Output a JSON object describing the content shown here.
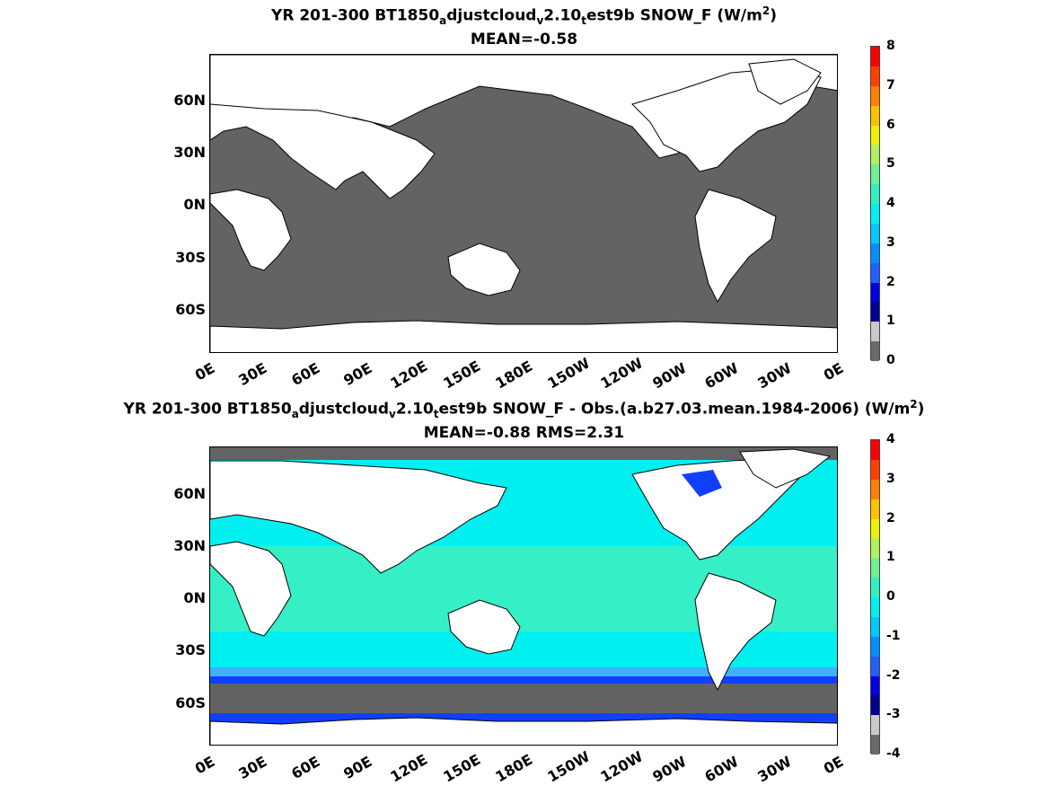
{
  "panels": [
    {
      "title_prefix": "YR 201-300 BT1850",
      "title_sub1": "a",
      "title_mid1": "djustcloud",
      "title_sub2": "v",
      "title_mid2": "2.10",
      "title_sub3": "t",
      "title_mid3": "est9b  SNOW_F (W/m",
      "title_sup": "2",
      "title_end": ")",
      "stats": "MEAN=-0.58",
      "colorbar_ticks": [
        "8",
        "7",
        "6",
        "5",
        "4",
        "3",
        "2",
        "1",
        "0"
      ]
    },
    {
      "title_prefix": "YR 201-300 BT1850",
      "title_sub1": "a",
      "title_mid1": "djustcloud",
      "title_sub2": "v",
      "title_mid2": "2.10",
      "title_sub3": "t",
      "title_mid3": "est9b SNOW_F - Obs.(a.b27.03.mean.1984-2006) (W/m",
      "title_sup": "2",
      "title_end": ")",
      "stats": "MEAN=-0.88 RMS=2.31",
      "colorbar_ticks": [
        "4",
        "3",
        "2",
        "1",
        "0",
        "-1",
        "-2",
        "-3",
        "-4"
      ]
    }
  ],
  "lat_labels": [
    "60N",
    "30N",
    "0N",
    "30S",
    "60S"
  ],
  "lon_labels": [
    "0E",
    "30E",
    "60E",
    "90E",
    "120E",
    "150E",
    "180E",
    "150W",
    "120W",
    "90W",
    "60W",
    "30W",
    "0E"
  ],
  "colors": {
    "ocean_gray": "#636363",
    "land": "#ffffff",
    "cyan": "#00f0f0",
    "green_cyan": "#3ef0c0",
    "blue": "#1040ff",
    "light_blue": "#40b0ff",
    "colormap": [
      "#6b6b6b",
      "#c8c8c8",
      "#000090",
      "#0000e0",
      "#2060ff",
      "#0090ff",
      "#00c8ff",
      "#00f0f0",
      "#30f0c0",
      "#70f090",
      "#b0f060",
      "#f0f000",
      "#ffc000",
      "#ff8000",
      "#ff4000",
      "#ff0000"
    ]
  }
}
